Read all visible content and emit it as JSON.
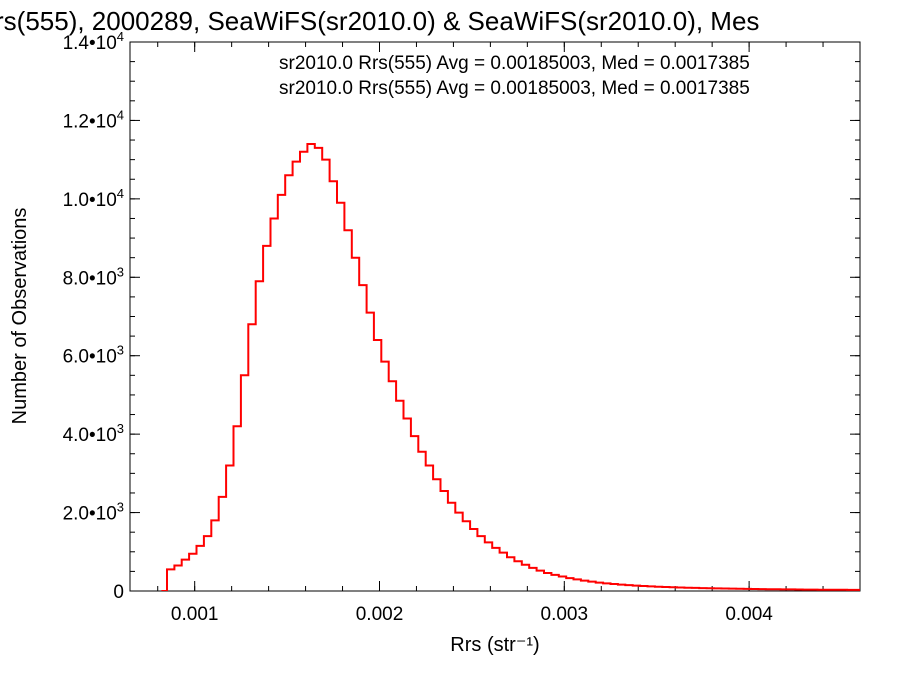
{
  "chart_data": {
    "type": "line",
    "title": "rs(555), 2000289, SeaWiFS(sr2010.0) & SeaWiFS(sr2010.0), Mes",
    "xlabel": "Rrs (str⁻¹)",
    "ylabel": "Number of Observations",
    "xlim": [
      0.00065,
      0.0046
    ],
    "ylim": [
      0,
      14000
    ],
    "x_ticks": [
      {
        "value": 0.001,
        "label": "0.001"
      },
      {
        "value": 0.002,
        "label": "0.002"
      },
      {
        "value": 0.003,
        "label": "0.003"
      },
      {
        "value": 0.004,
        "label": "0.004"
      }
    ],
    "y_ticks": [
      {
        "value": 0,
        "mant": "0",
        "exp": ""
      },
      {
        "value": 2000,
        "mant": "2.0•10",
        "exp": "3"
      },
      {
        "value": 4000,
        "mant": "4.0•10",
        "exp": "3"
      },
      {
        "value": 6000,
        "mant": "6.0•10",
        "exp": "3"
      },
      {
        "value": 8000,
        "mant": "8.0•10",
        "exp": "3"
      },
      {
        "value": 10000,
        "mant": "1.0•10",
        "exp": "4"
      },
      {
        "value": 12000,
        "mant": "1.2•10",
        "exp": "4"
      },
      {
        "value": 14000,
        "mant": "1.4•10",
        "exp": "4"
      }
    ],
    "legend": [
      {
        "text": "sr2010.0 Rrs(555) Avg = 0.00185003, Med = 0.0017385",
        "color": "#000000"
      },
      {
        "text": "sr2010.0 Rrs(555) Avg = 0.00185003, Med = 0.0017385",
        "color": "#ff0000"
      }
    ],
    "legend_position": "top-right",
    "grid": false,
    "series": [
      {
        "color": "#ff0000",
        "x": [
          0.00082,
          0.00085,
          0.00089,
          0.00093,
          0.00097,
          0.00101,
          0.00105,
          0.00109,
          0.00113,
          0.00117,
          0.00121,
          0.00125,
          0.00129,
          0.00133,
          0.00137,
          0.00141,
          0.00145,
          0.00149,
          0.00153,
          0.00157,
          0.00161,
          0.00165,
          0.00169,
          0.00173,
          0.00177,
          0.00181,
          0.00185,
          0.00189,
          0.00193,
          0.00197,
          0.00201,
          0.00205,
          0.00209,
          0.00213,
          0.00217,
          0.00221,
          0.00225,
          0.00229,
          0.00233,
          0.00237,
          0.00241,
          0.00245,
          0.00249,
          0.00253,
          0.00257,
          0.00261,
          0.00265,
          0.00269,
          0.00273,
          0.00277,
          0.00281,
          0.00285,
          0.00289,
          0.00293,
          0.00297,
          0.00301,
          0.00305,
          0.00309,
          0.00313,
          0.00317,
          0.00321,
          0.00325,
          0.00329,
          0.00333,
          0.00337,
          0.00341,
          0.00345,
          0.00349,
          0.00353,
          0.00357,
          0.00361,
          0.00365,
          0.00369,
          0.00373,
          0.00377,
          0.00381,
          0.00385,
          0.00389,
          0.00393,
          0.00397,
          0.00401,
          0.00405,
          0.00409,
          0.00413,
          0.00417,
          0.00421,
          0.00425,
          0.00429,
          0.00433,
          0.00437,
          0.00441,
          0.00445,
          0.00449,
          0.00453,
          0.00457,
          0.0046
        ],
        "y": [
          0,
          550,
          650,
          800,
          950,
          1150,
          1400,
          1800,
          2400,
          3200,
          4200,
          5500,
          6800,
          7900,
          8800,
          9500,
          10100,
          10600,
          10950,
          11200,
          11400,
          11300,
          11000,
          10450,
          9900,
          9200,
          8500,
          7800,
          7100,
          6400,
          5850,
          5350,
          4850,
          4400,
          3950,
          3550,
          3200,
          2850,
          2550,
          2250,
          2000,
          1780,
          1580,
          1400,
          1240,
          1100,
          980,
          860,
          760,
          670,
          590,
          520,
          460,
          410,
          370,
          330,
          295,
          265,
          240,
          215,
          195,
          178,
          163,
          150,
          138,
          128,
          118,
          110,
          103,
          96,
          90,
          85,
          80,
          75,
          71,
          67,
          64,
          60,
          57,
          54,
          51,
          48,
          46,
          44,
          42,
          40,
          38,
          36,
          35,
          33,
          32,
          31,
          30,
          29,
          28,
          27
        ]
      }
    ]
  }
}
